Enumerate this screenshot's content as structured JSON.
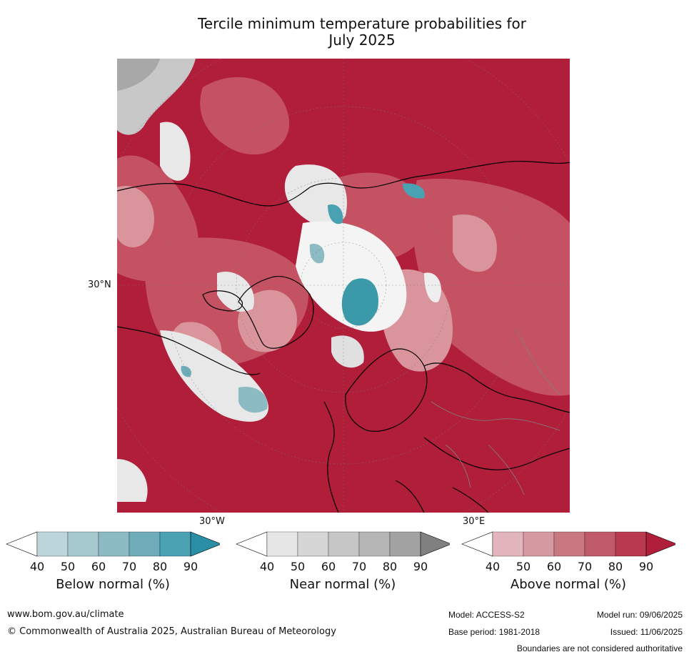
{
  "title": {
    "line1": "Tercile minimum temperature probabilities for",
    "line2": "July 2025"
  },
  "map": {
    "labels": {
      "lat_left": "30°N",
      "lon_bottom_left": "30°W",
      "lon_bottom_right": "30°E"
    },
    "colors": {
      "above_dark": "#b11e3a",
      "above_mid": "#c85868",
      "above_light": "#d9949c",
      "near_light": "#e8e8e8",
      "near_mid": "#c8c8c8",
      "below": "#3a9aaa",
      "coast": "#000000",
      "border": "#808080"
    }
  },
  "colorbars": [
    {
      "title": "Below normal (%)",
      "ticks": [
        "40",
        "50",
        "60",
        "70",
        "80",
        "90"
      ],
      "colors": [
        "#bcd5db",
        "#a6c8cf",
        "#8cbbc4",
        "#6eacb9",
        "#4aa1b2",
        "#2a8ea4"
      ]
    },
    {
      "title": "Near normal (%)",
      "ticks": [
        "40",
        "50",
        "60",
        "70",
        "80",
        "90"
      ],
      "colors": [
        "#e6e6e6",
        "#d6d6d6",
        "#c6c6c6",
        "#b5b5b5",
        "#a3a3a3",
        "#808080"
      ]
    },
    {
      "title": "Above normal (%)",
      "ticks": [
        "40",
        "50",
        "60",
        "70",
        "80",
        "90"
      ],
      "colors": [
        "#e1b5bb",
        "#d59aa1",
        "#c97881",
        "#c05a6a",
        "#b93a4f",
        "#b11e3a"
      ]
    }
  ],
  "footer": {
    "website": "www.bom.gov.au/climate",
    "copyright": "© Commonwealth of Australia 2025, Australian Bureau of Meteorology",
    "model": "Model: ACCESS-S2",
    "model_run": "Model run: 09/06/2025",
    "base_period": "Base period: 1981-2018",
    "issued": "Issued: 11/06/2025",
    "disclaimer": "Boundaries are not considered authoritative"
  }
}
